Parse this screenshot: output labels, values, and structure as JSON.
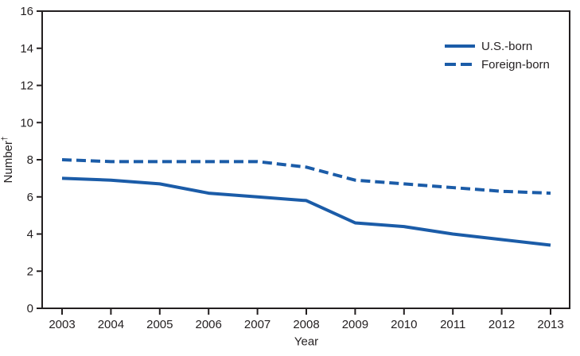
{
  "figure": {
    "background_color": "#ffffff"
  },
  "chart_data": {
    "type": "line",
    "title": "",
    "xlabel": "Year",
    "ylabel": "Number",
    "ylabel_superscript": "†",
    "x": [
      2003,
      2004,
      2005,
      2006,
      2007,
      2008,
      2009,
      2010,
      2011,
      2012,
      2013
    ],
    "series": [
      {
        "name": "U.S.-born",
        "style": "solid",
        "color": "#1b5ca8",
        "values": [
          7.0,
          6.9,
          6.7,
          6.2,
          6.0,
          5.8,
          4.6,
          4.4,
          4.0,
          3.7,
          3.4
        ]
      },
      {
        "name": "Foreign-born",
        "style": "dashed",
        "color": "#1b5ca8",
        "values": [
          8.0,
          7.9,
          7.9,
          7.9,
          7.9,
          7.6,
          6.9,
          6.7,
          6.5,
          6.3,
          6.2
        ]
      }
    ],
    "ylim": [
      0,
      16
    ],
    "yticks": [
      0,
      2,
      4,
      6,
      8,
      10,
      12,
      14,
      16
    ],
    "grid": false,
    "plot_border": true,
    "legend_position": "top-right-inside",
    "axis_color": "#231f20",
    "text_color": "#231f20"
  }
}
